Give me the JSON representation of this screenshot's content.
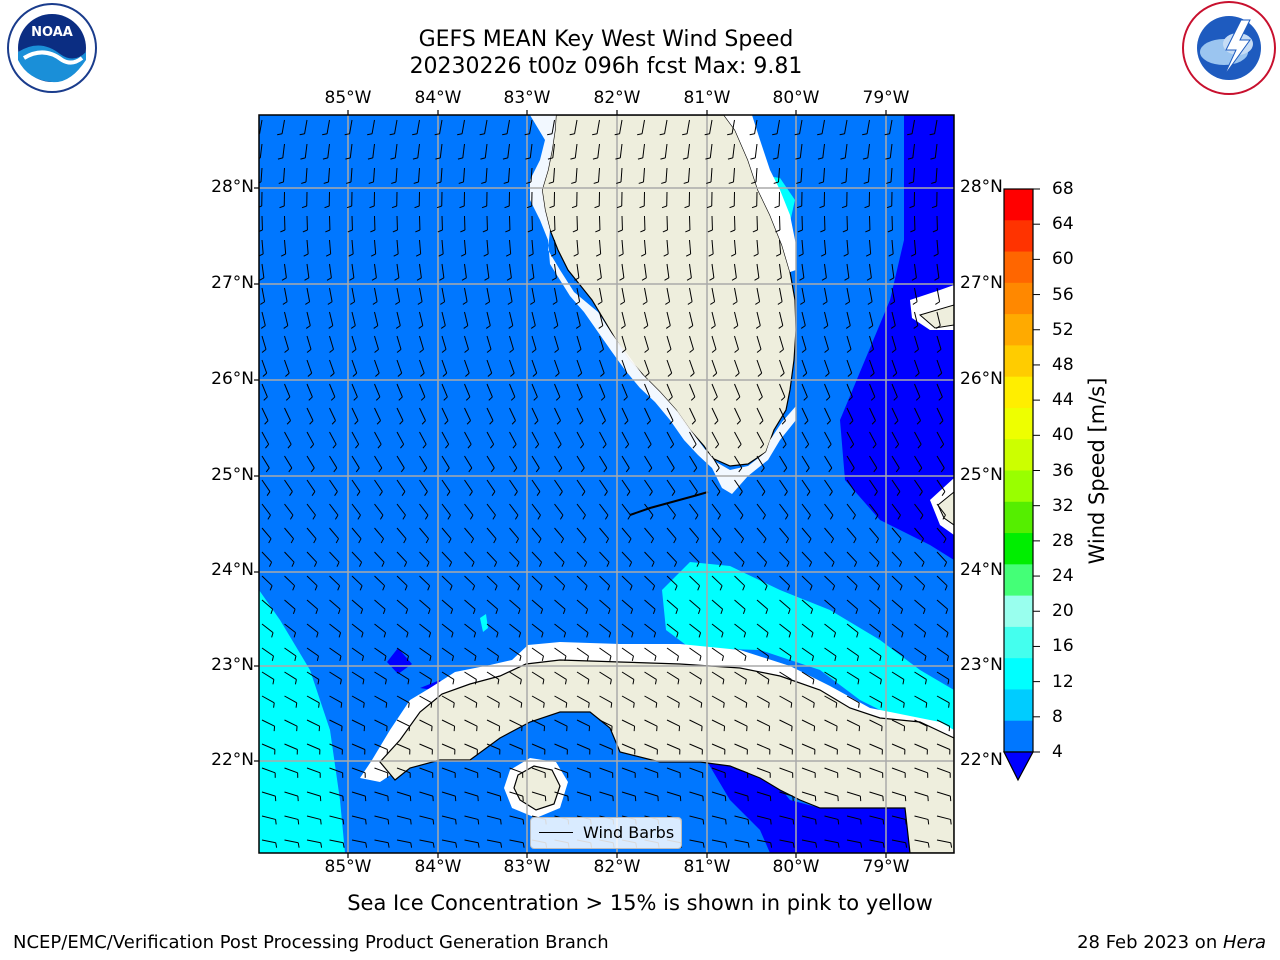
{
  "header": {
    "title_line1": "GEFS MEAN Key West Wind Speed",
    "title_line2": "20230226 t00z 096h fcst   Max: 9.81"
  },
  "logos": {
    "left_name": "NOAA",
    "left_ring_text": "NATIONAL OCEANIC AND ATMOSPHERIC ADMINISTRATION · U.S. DEPARTMENT OF COMMERCE",
    "right_ring_text": "NATIONAL WEATHER SERVICE"
  },
  "axes": {
    "lon_labels": [
      "85°W",
      "84°W",
      "83°W",
      "82°W",
      "81°W",
      "80°W",
      "79°W"
    ],
    "lat_labels": [
      "28°N",
      "27°N",
      "26°N",
      "25°N",
      "24°N",
      "23°N",
      "22°N"
    ]
  },
  "colorbar": {
    "label": "Wind Speed [m/s]",
    "ticks": [
      "68",
      "64",
      "60",
      "56",
      "52",
      "48",
      "44",
      "40",
      "36",
      "32",
      "28",
      "24",
      "20",
      "16",
      "12",
      "8",
      "4"
    ],
    "colors": [
      "#ff0000",
      "#ff3300",
      "#ff6600",
      "#ff8800",
      "#ffaa00",
      "#ffcc00",
      "#ffee00",
      "#eeff00",
      "#ccff00",
      "#99ff00",
      "#55ee00",
      "#00ee00",
      "#44ff77",
      "#99ffee",
      "#44ffee",
      "#00ffff",
      "#00ccff",
      "#0077ff"
    ],
    "under_color": "#0000ff"
  },
  "legend": {
    "label": "Wind Barbs"
  },
  "colors": {
    "land": "#eeeedd",
    "sea_4_8": "#0077ff",
    "sea_8_12": "#00ffff",
    "sea_below_4": "#0000ff",
    "sea_12_16": "#44ffee"
  },
  "note": "Sea Ice Concentration > 15% is shown in pink to yellow",
  "footer": {
    "left": "NCEP/EMC/Verification Post Processing Product Generation Branch",
    "date": "28 Feb 2023 on ",
    "machine": "Hera"
  }
}
